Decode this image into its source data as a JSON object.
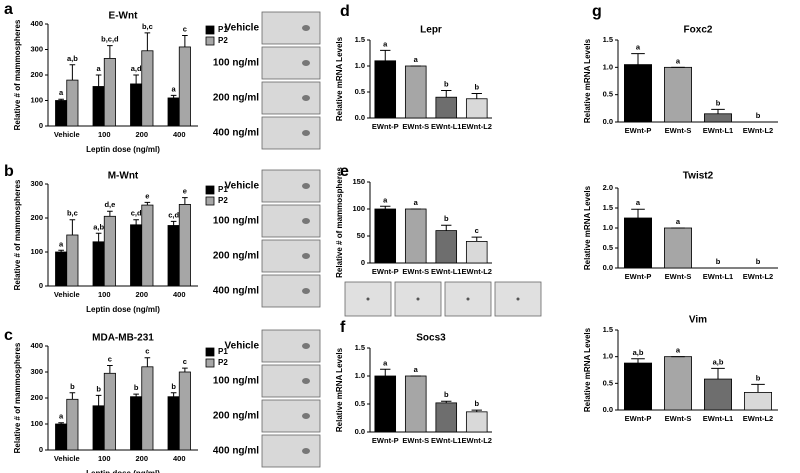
{
  "chart_data": [
    {
      "type": "bar",
      "panel": "a",
      "title": "E-Wnt",
      "ylabel": "Relative # of mammospheres",
      "xlabel": "Leptin dose (ng/ml)",
      "categories": [
        "Vehicle",
        "100",
        "200",
        "400"
      ],
      "ylim": [
        0,
        400
      ],
      "yticks": [
        0,
        100,
        200,
        300,
        400
      ],
      "series": [
        {
          "name": "P1",
          "color": "#000000",
          "values": [
            100,
            155,
            165,
            110
          ],
          "errors": [
            5,
            45,
            35,
            10
          ],
          "letters": [
            "a",
            "a",
            "a,d",
            "a"
          ]
        },
        {
          "name": "P2",
          "color": "#a6a6a6",
          "values": [
            180,
            265,
            295,
            310
          ],
          "errors": [
            60,
            50,
            70,
            45
          ],
          "letters": [
            "a,b",
            "b,c,d",
            "b,c",
            "c"
          ]
        }
      ],
      "image_labels": [
        "Vehicle",
        "100 ng/ml",
        "200 ng/ml",
        "400 ng/ml"
      ]
    },
    {
      "type": "bar",
      "panel": "b",
      "title": "M-Wnt",
      "ylabel": "Relative # of mammospheres",
      "xlabel": "Leptin dose (ng/ml)",
      "categories": [
        "Vehicle",
        "100",
        "200",
        "400"
      ],
      "ylim": [
        0,
        300
      ],
      "yticks": [
        0,
        100,
        200,
        300
      ],
      "series": [
        {
          "name": "P1",
          "color": "#000000",
          "values": [
            100,
            130,
            180,
            178
          ],
          "errors": [
            5,
            25,
            15,
            12
          ],
          "letters": [
            "a",
            "a,b",
            "c,d",
            "c,d"
          ]
        },
        {
          "name": "P2",
          "color": "#a6a6a6",
          "values": [
            150,
            205,
            238,
            240
          ],
          "errors": [
            45,
            15,
            8,
            20
          ],
          "letters": [
            "b,c",
            "d,e",
            "e",
            "e"
          ]
        }
      ],
      "image_labels": [
        "Vehicle",
        "100 ng/ml",
        "200 ng/ml",
        "400 ng/ml"
      ]
    },
    {
      "type": "bar",
      "panel": "c",
      "title": "MDA-MB-231",
      "ylabel": "Relative # of mammospheres",
      "xlabel": "Leptin dose (ng/ml)",
      "categories": [
        "Vehicle",
        "100",
        "200",
        "400"
      ],
      "ylim": [
        0,
        400
      ],
      "yticks": [
        0,
        100,
        200,
        300,
        400
      ],
      "series": [
        {
          "name": "P1",
          "color": "#000000",
          "values": [
            100,
            170,
            205,
            205
          ],
          "errors": [
            5,
            40,
            10,
            15
          ],
          "letters": [
            "a",
            "b",
            "b",
            "b"
          ]
        },
        {
          "name": "P2",
          "color": "#a6a6a6",
          "values": [
            195,
            295,
            320,
            300
          ],
          "errors": [
            25,
            30,
            35,
            15
          ],
          "letters": [
            "b",
            "c",
            "c",
            "c"
          ]
        }
      ],
      "image_labels": [
        "Vehicle",
        "100 ng/ml",
        "200 ng/ml",
        "400 ng/ml"
      ]
    },
    {
      "type": "bar",
      "panel": "d",
      "title": "Lepr",
      "ylabel": "Relative mRNA Levels",
      "categories": [
        "EWnt-P",
        "EWnt-S",
        "EWnt-L1",
        "EWnt-L2"
      ],
      "ylim": [
        0,
        1.5
      ],
      "yticks": [
        {
          "value": 0,
          "label": "0.0"
        },
        0.5,
        {
          "value": 1,
          "label": "1.0"
        },
        1.5
      ],
      "series": [
        {
          "colors": [
            "#000000",
            "#a6a6a6",
            "#6e6e6e",
            "#d9d9d9"
          ],
          "values": [
            1.1,
            1.0,
            0.4,
            0.37
          ],
          "errors": [
            0.2,
            0,
            0.13,
            0.1
          ],
          "letters": [
            "a",
            "a",
            "b",
            "b"
          ]
        }
      ]
    },
    {
      "type": "bar",
      "panel": "e",
      "ylabel": "Relative # of mammospheres",
      "categories": [
        "EWnt-P",
        "EWnt-S",
        "EWnt-L1",
        "EWnt-L2"
      ],
      "ylim": [
        0,
        150
      ],
      "yticks": [
        0,
        50,
        100,
        150
      ],
      "series": [
        {
          "colors": [
            "#000000",
            "#a6a6a6",
            "#6e6e6e",
            "#d9d9d9"
          ],
          "values": [
            100,
            100,
            60,
            40
          ],
          "errors": [
            5,
            0,
            10,
            8
          ],
          "letters": [
            "a",
            "a",
            "b",
            "c"
          ]
        }
      ]
    },
    {
      "type": "bar",
      "panel": "f",
      "title": "Socs3",
      "ylabel": "Relative mRNA Levels",
      "categories": [
        "EWnt-P",
        "EWnt-S",
        "EWnt-L1",
        "EWnt-L2"
      ],
      "ylim": [
        0,
        1.5
      ],
      "yticks": [
        {
          "value": 0,
          "label": "0.0"
        },
        0.5,
        {
          "value": 1,
          "label": "1.0"
        },
        1.5
      ],
      "series": [
        {
          "colors": [
            "#000000",
            "#a6a6a6",
            "#6e6e6e",
            "#d9d9d9"
          ],
          "values": [
            1.0,
            1.0,
            0.52,
            0.36
          ],
          "errors": [
            0.12,
            0,
            0.03,
            0.03
          ],
          "letters": [
            "a",
            "a",
            "b",
            "b"
          ]
        }
      ]
    },
    {
      "type": "bar",
      "panel": "g",
      "title": "Foxc2",
      "ylabel": "Relative mRNA Levels",
      "categories": [
        "EWnt-P",
        "EWnt-S",
        "EWnt-L1",
        "EWnt-L2"
      ],
      "ylim": [
        0,
        1.5
      ],
      "yticks": [
        {
          "value": 0,
          "label": "0.0"
        },
        0.5,
        {
          "value": 1,
          "label": "1.0"
        },
        1.5
      ],
      "series": [
        {
          "colors": [
            "#000000",
            "#a6a6a6",
            "#6e6e6e",
            "#d9d9d9"
          ],
          "values": [
            1.05,
            1.0,
            0.15,
            0
          ],
          "errors": [
            0.2,
            0,
            0.08,
            0
          ],
          "letters": [
            "a",
            "a",
            "b",
            "b"
          ]
        }
      ]
    },
    {
      "type": "bar",
      "title": "Twist2",
      "ylabel": "Relative mRNA Levels",
      "categories": [
        "EWnt-P",
        "EWnt-S",
        "EWnt-L1",
        "EWnt-L2"
      ],
      "ylim": [
        0,
        2
      ],
      "yticks": [
        {
          "value": 0,
          "label": "0.0"
        },
        0.5,
        {
          "value": 1,
          "label": "1.0"
        },
        1.5,
        {
          "value": 2,
          "label": "2.0"
        }
      ],
      "series": [
        {
          "colors": [
            "#000000",
            "#a6a6a6",
            "#6e6e6e",
            "#d9d9d9"
          ],
          "values": [
            1.25,
            1.0,
            0,
            0
          ],
          "errors": [
            0.22,
            0,
            0,
            0
          ],
          "letters": [
            "a",
            "a",
            "b",
            "b"
          ]
        }
      ]
    },
    {
      "type": "bar",
      "title": "Vim",
      "ylabel": "Relative mRNA Levels",
      "categories": [
        "EWnt-P",
        "EWnt-S",
        "EWnt-L1",
        "EWnt-L2"
      ],
      "ylim": [
        0,
        1.5
      ],
      "yticks": [
        {
          "value": 0,
          "label": "0.0"
        },
        0.5,
        {
          "value": 1,
          "label": "1.0"
        },
        1.5
      ],
      "series": [
        {
          "colors": [
            "#000000",
            "#a6a6a6",
            "#6e6e6e",
            "#d9d9d9"
          ],
          "values": [
            0.88,
            1.0,
            0.58,
            0.33
          ],
          "errors": [
            0.08,
            0,
            0.2,
            0.15
          ],
          "letters": [
            "a,b",
            "a",
            "a,b",
            "b"
          ]
        }
      ]
    }
  ]
}
